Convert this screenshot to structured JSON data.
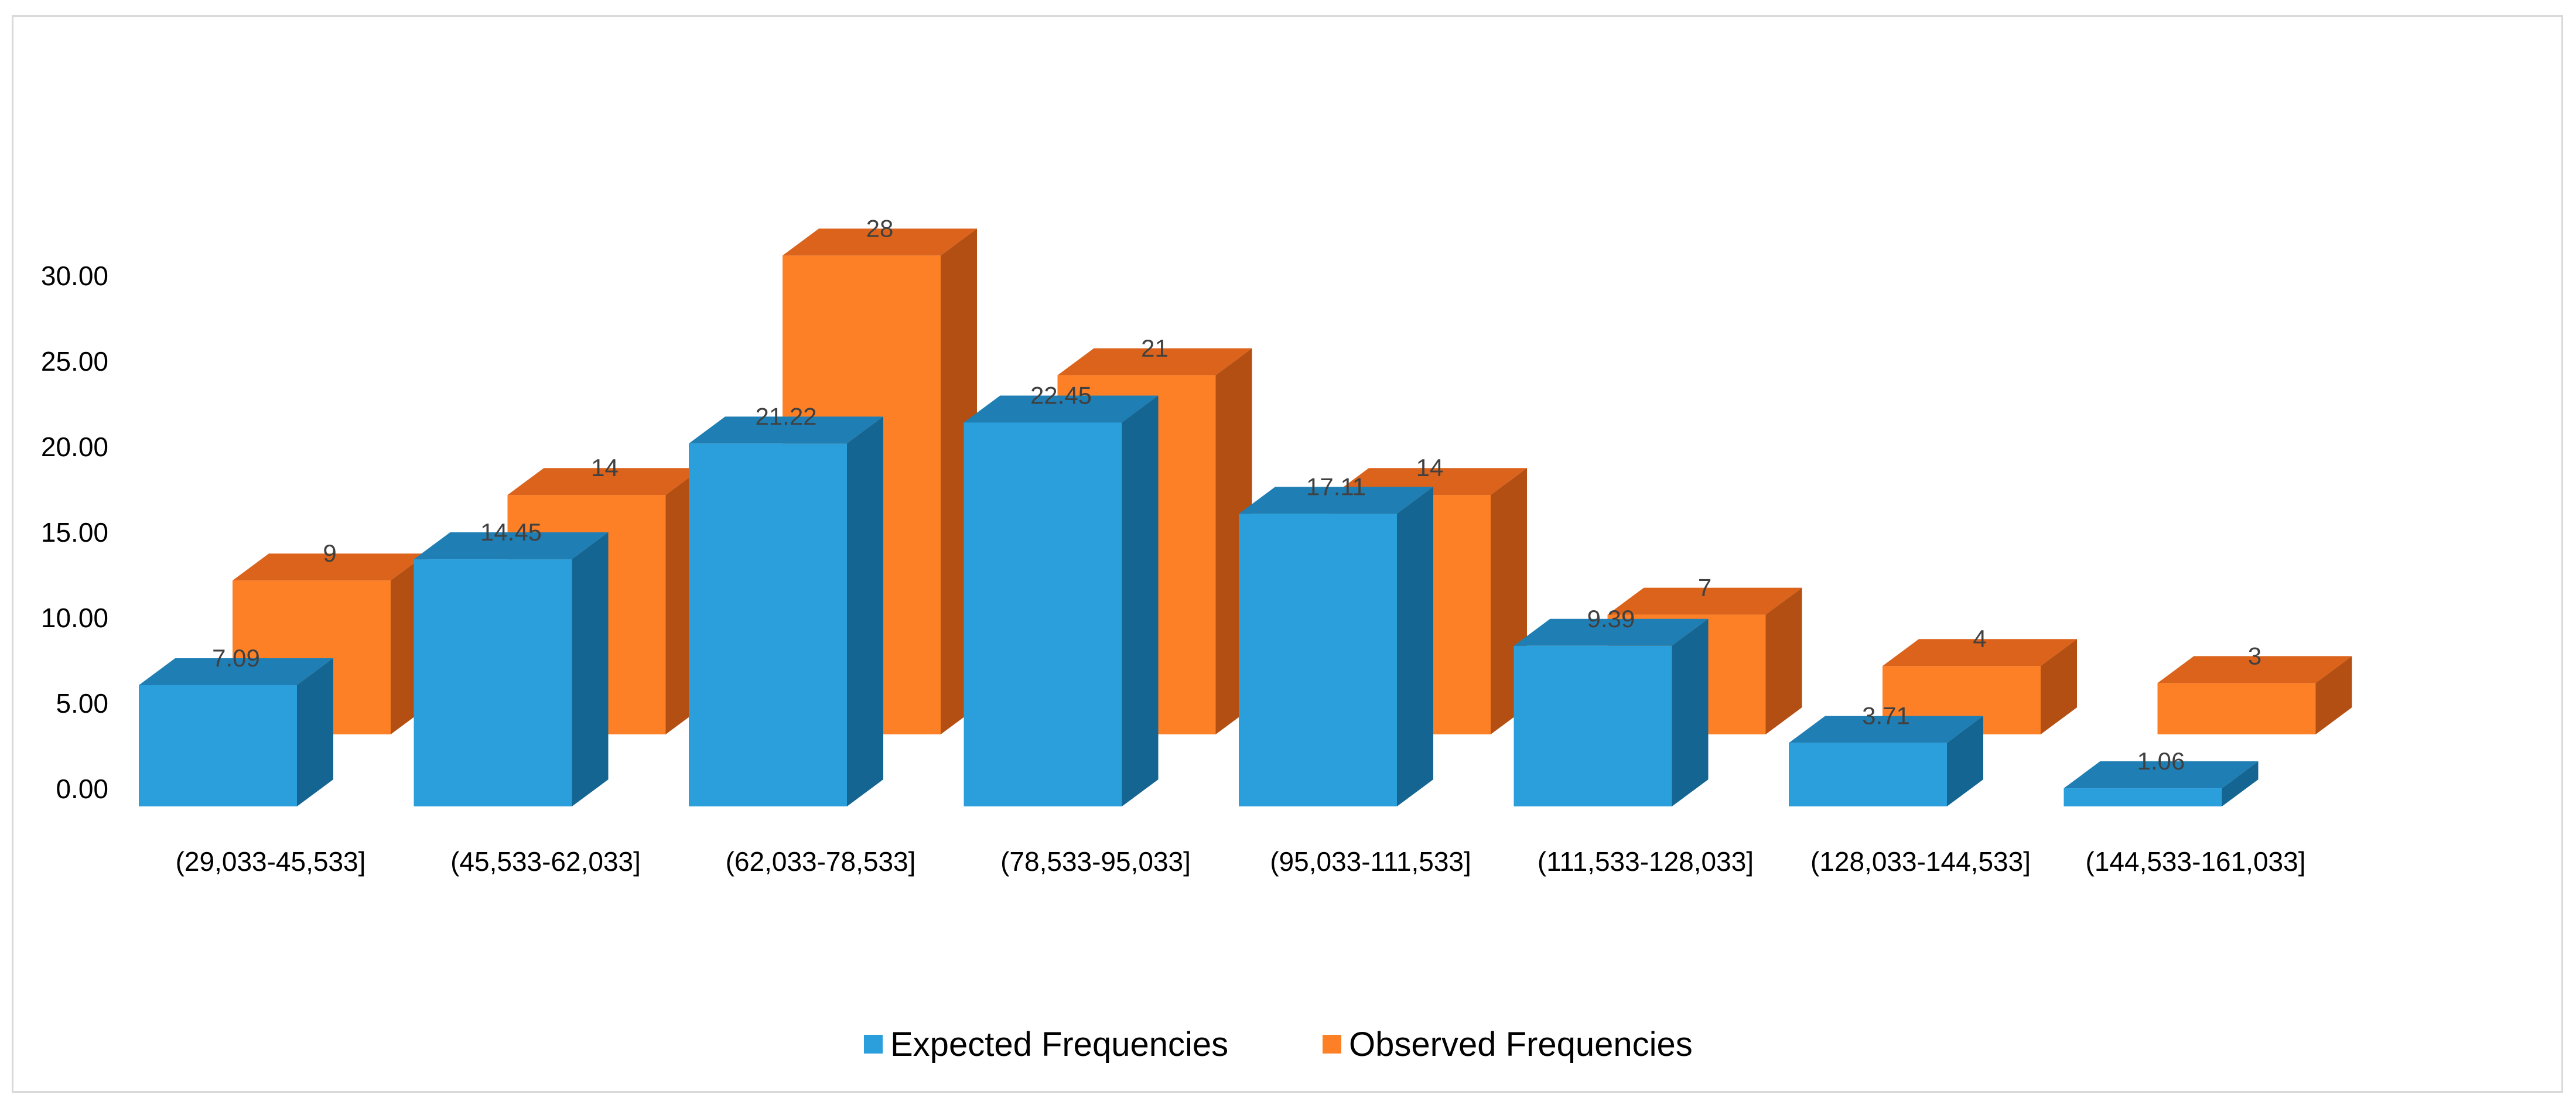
{
  "chart_data": {
    "type": "bar",
    "title": "",
    "xlabel": "",
    "ylabel": "",
    "ylim": [
      0,
      30
    ],
    "yticks": [
      "0.00",
      "5.00",
      "10.00",
      "15.00",
      "20.00",
      "25.00",
      "30.00"
    ],
    "ytick_values": [
      0,
      5,
      10,
      15,
      20,
      25,
      30
    ],
    "categories": [
      "(29,033-45,533]",
      "(45,533-62,033]",
      "(62,033-78,533]",
      "(78,533-95,033]",
      "(95,033-111,533]",
      "(111,533-128,033]",
      "(128,033-144,533]",
      "(144,533-161,033]"
    ],
    "series": [
      {
        "name": "Expected Frequencies",
        "values": [
          7.09,
          14.45,
          21.22,
          22.45,
          17.11,
          9.39,
          3.71,
          1.06
        ],
        "labels": [
          "7.09",
          "14.45",
          "21.22",
          "22.45",
          "17.11",
          "9.39",
          "3.71",
          "1.06"
        ],
        "color": "#2a9fdc",
        "top_color": "#1f7fb5",
        "side_color": "#146591"
      },
      {
        "name": "Observed Frequencies",
        "values": [
          9,
          14,
          28,
          21,
          14,
          7,
          4,
          3
        ],
        "labels": [
          "9",
          "14",
          "28",
          "21",
          "14",
          "7",
          "4",
          "3"
        ],
        "color": "#fd8026",
        "top_color": "#db631b",
        "side_color": "#b34f12"
      }
    ],
    "grid": false,
    "legend": "bottom",
    "style": "3d-bar"
  }
}
